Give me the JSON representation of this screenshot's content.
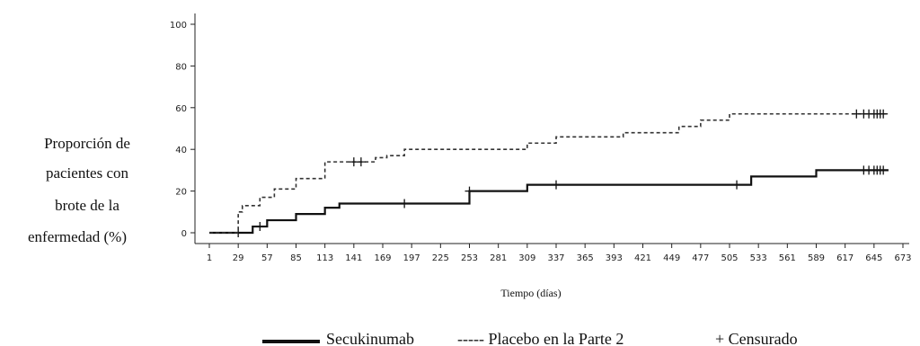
{
  "chart_data": {
    "type": "line",
    "ylabel_lines": [
      "Proporción de",
      "pacientes con",
      "brote de la",
      "enfermedad (%)"
    ],
    "xlabel": "Tiempo (días)",
    "xlim": [
      1,
      673
    ],
    "ylim": [
      0,
      100
    ],
    "xticks": [
      1,
      29,
      57,
      85,
      113,
      141,
      169,
      197,
      225,
      253,
      281,
      309,
      337,
      365,
      393,
      421,
      449,
      477,
      505,
      533,
      561,
      589,
      617,
      645,
      673
    ],
    "yticks": [
      0,
      20,
      40,
      60,
      80,
      100
    ],
    "grid": false,
    "legend_position": "bottom",
    "legend": {
      "solid": "Secukinumab",
      "dashed": "----- Placebo en la Parte 2",
      "censor": "+ Censurado"
    },
    "series": [
      {
        "name": "Secukinumab",
        "style": "solid",
        "color": "#111111",
        "steps": [
          [
            1,
            0
          ],
          [
            43,
            3
          ],
          [
            57,
            6
          ],
          [
            85,
            9
          ],
          [
            113,
            12
          ],
          [
            127,
            14
          ],
          [
            253,
            20
          ],
          [
            309,
            23
          ],
          [
            526,
            27
          ],
          [
            589,
            30
          ],
          [
            659,
            30
          ]
        ],
        "censored": [
          [
            29,
            0
          ],
          [
            50,
            3
          ],
          [
            190,
            14
          ],
          [
            253,
            20
          ],
          [
            337,
            23
          ],
          [
            512,
            23
          ],
          [
            635,
            30
          ],
          [
            640,
            30
          ],
          [
            645,
            30
          ],
          [
            648,
            30
          ],
          [
            651,
            30
          ],
          [
            654,
            30
          ]
        ]
      },
      {
        "name": "Placebo en la Parte 2",
        "style": "dashed",
        "color": "#333333",
        "steps": [
          [
            1,
            0
          ],
          [
            29,
            10
          ],
          [
            33,
            13
          ],
          [
            50,
            17
          ],
          [
            64,
            21
          ],
          [
            85,
            26
          ],
          [
            113,
            34
          ],
          [
            162,
            36
          ],
          [
            173,
            37
          ],
          [
            190,
            40
          ],
          [
            253,
            40
          ],
          [
            309,
            43
          ],
          [
            337,
            46
          ],
          [
            402,
            48
          ],
          [
            456,
            51
          ],
          [
            477,
            54
          ],
          [
            505,
            57
          ],
          [
            659,
            57
          ]
        ],
        "censored": [
          [
            141,
            34
          ],
          [
            148,
            34
          ],
          [
            628,
            57
          ],
          [
            635,
            57
          ],
          [
            640,
            57
          ],
          [
            645,
            57
          ],
          [
            648,
            57
          ],
          [
            651,
            57
          ],
          [
            654,
            57
          ]
        ]
      }
    ]
  }
}
